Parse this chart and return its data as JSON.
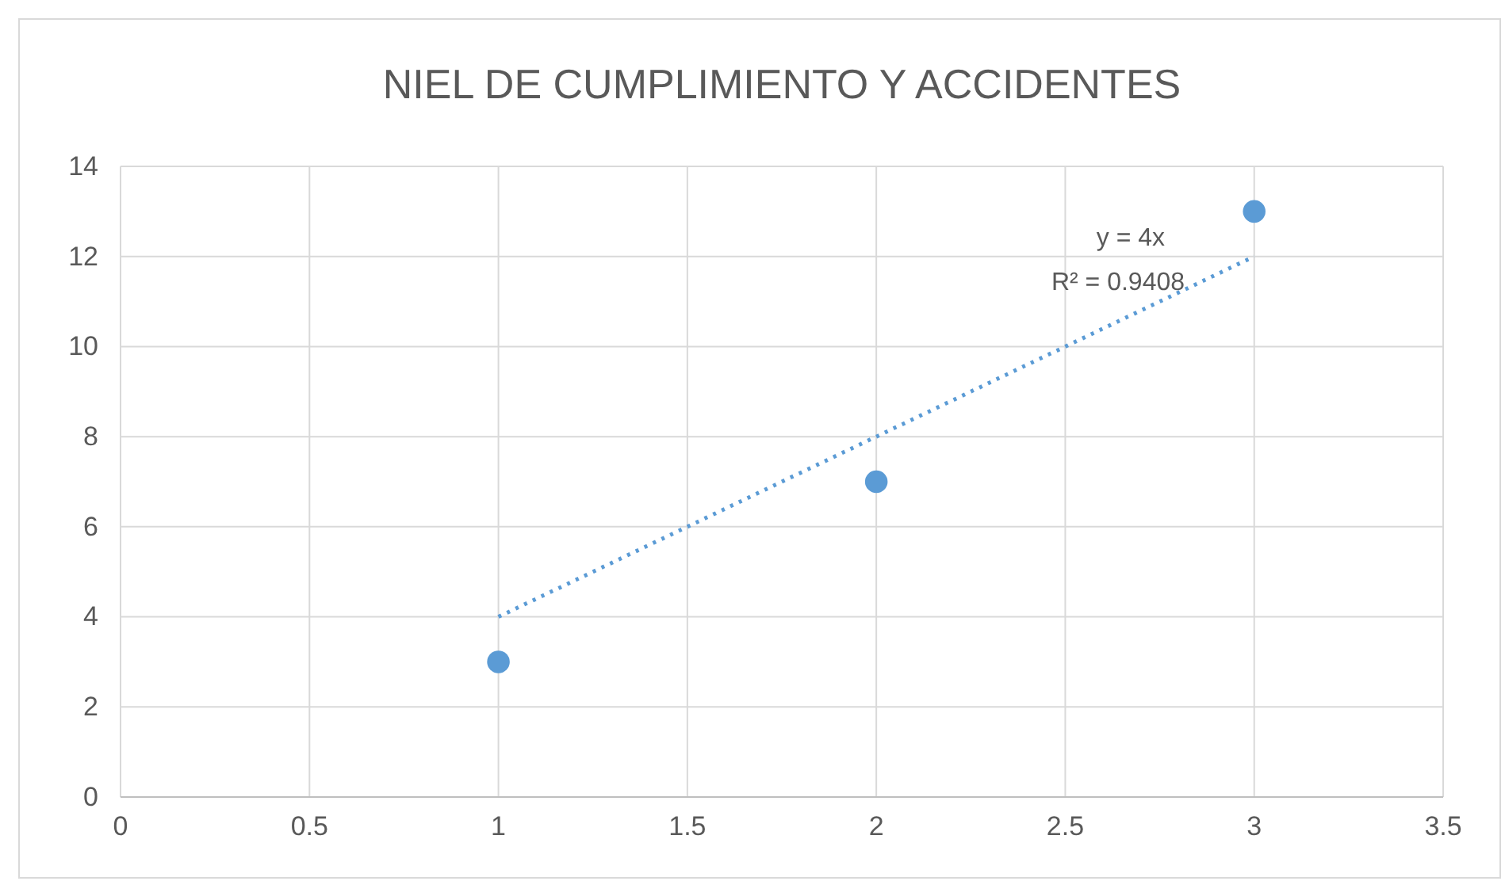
{
  "chart_data": {
    "type": "scatter",
    "title": "NIEL DE CUMPLIMIENTO Y ACCIDENTES",
    "series": [
      {
        "color": "#5b9bd5",
        "x": [
          1,
          2,
          3
        ],
        "values": [
          3,
          7,
          13
        ]
      },
      {
        "type": "line",
        "color": "#5b9bd5",
        "x": [
          1,
          3
        ],
        "values": [
          4,
          12
        ],
        "line_style": "dotted",
        "marker": "none"
      }
    ],
    "marker": "circle",
    "xlim": [
      0,
      3.5
    ],
    "xticks": [
      0,
      0.5,
      1,
      1.5,
      2,
      2.5,
      3,
      3.5
    ],
    "ylim": [
      0,
      14
    ],
    "yticks": [
      0,
      2,
      4,
      6,
      8,
      10,
      12,
      14
    ],
    "grid": true,
    "annotations": [
      "y = 4x",
      "R² = 0.9408"
    ]
  }
}
